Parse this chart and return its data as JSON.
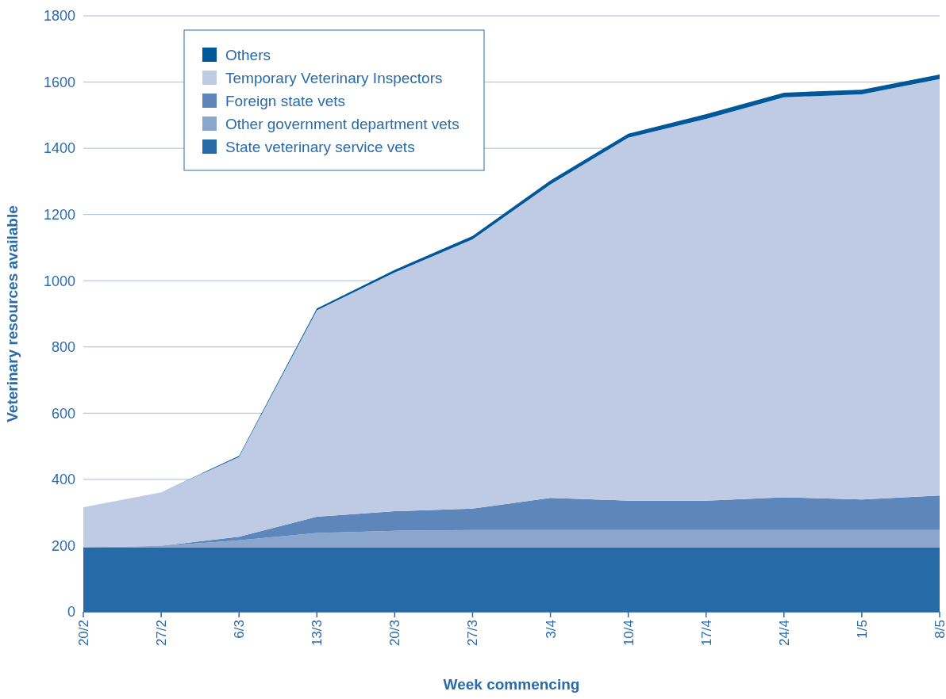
{
  "chart_data": {
    "type": "area",
    "stacked": true,
    "xlabel": "Week commencing",
    "ylabel": "Veterinary resources available",
    "categories": [
      "20/2",
      "27/2",
      "6/3",
      "13/3",
      "20/3",
      "27/3",
      "3/4",
      "10/4",
      "17/4",
      "24/4",
      "1/5",
      "8/5"
    ],
    "series": [
      {
        "name": "State veterinary service vets",
        "color": "#276aa8",
        "values": [
          195,
          195,
          195,
          195,
          195,
          195,
          195,
          195,
          195,
          195,
          195,
          195
        ]
      },
      {
        "name": "Other government department vets",
        "color": "#8aa6cf",
        "values": [
          0,
          4,
          21,
          43,
          50,
          52,
          52,
          52,
          52,
          52,
          52,
          52
        ]
      },
      {
        "name": "Foreign state vets",
        "color": "#5d86ba",
        "values": [
          0,
          0,
          11,
          49,
          59,
          65,
          97,
          89,
          89,
          99,
          92,
          104
        ]
      },
      {
        "name": "Temporary Veterinary Inspectors",
        "color": "#bfcbe4",
        "values": [
          121,
          162,
          241,
          624,
          721,
          813,
          947,
          1096,
          1153,
          1208,
          1224,
          1258
        ]
      },
      {
        "name": "Others",
        "color": "#00579a",
        "values": [
          0,
          0,
          3,
          5,
          8,
          10,
          12,
          12,
          14,
          14,
          14,
          14
        ]
      }
    ],
    "ylim": [
      0,
      1800
    ],
    "yticks": [
      0,
      200,
      400,
      600,
      800,
      1000,
      1200,
      1400,
      1600,
      1800
    ],
    "grid": "y",
    "legend": "top left"
  }
}
